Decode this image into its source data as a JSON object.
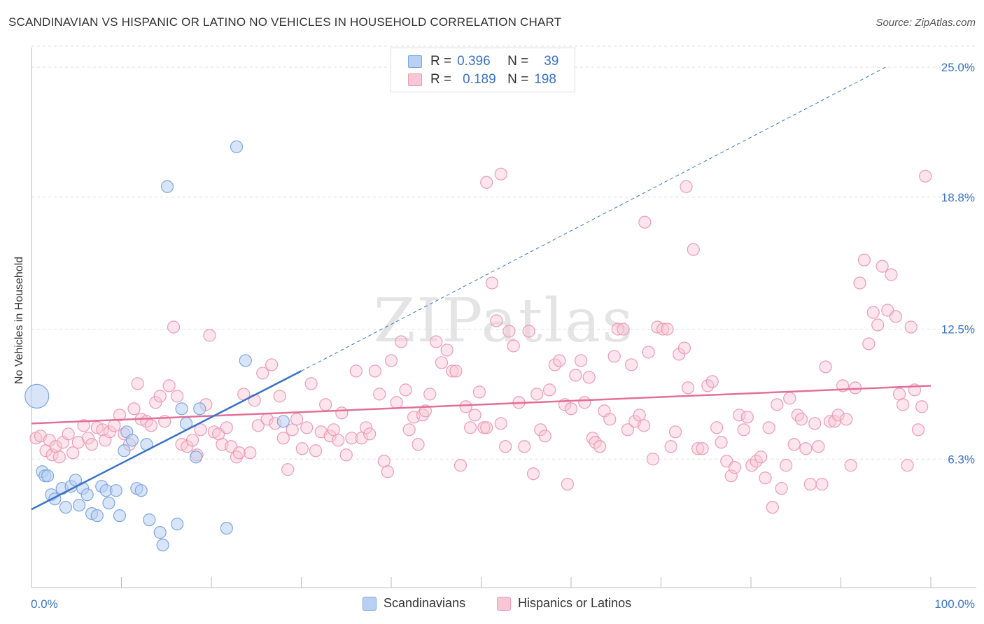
{
  "title": "SCANDINAVIAN VS HISPANIC OR LATINO NO VEHICLES IN HOUSEHOLD CORRELATION CHART",
  "source": "Source: ZipAtlas.com",
  "watermark": "ZIPatlas",
  "legend_top": {
    "rows": [
      {
        "r_label": "R =",
        "r_value": "0.396",
        "n_label": "N =",
        "n_value": "39"
      },
      {
        "r_label": "R =",
        "r_value": "0.189",
        "n_label": "N =",
        "n_value": "198"
      }
    ]
  },
  "legend_bottom": [
    "Scandinavians",
    "Hispanics or Latinos"
  ],
  "colors": {
    "blue_fill": "#b8d0f3",
    "blue_stroke": "#7ea6e0",
    "blue_line": "#3a73c8",
    "pink_fill": "#f9c6d5",
    "pink_stroke": "#ec9bb5",
    "pink_line": "#e27099",
    "tick_label": "#3a73c8",
    "grid": "#dddddd"
  },
  "chart_data": {
    "type": "scatter",
    "title": "SCANDINAVIAN VS HISPANIC OR LATINO NO VEHICLES IN HOUSEHOLD CORRELATION CHART",
    "xlabel": "",
    "ylabel": "No Vehicles in Household",
    "xlim": [
      0,
      100
    ],
    "ylim": [
      0,
      26.5
    ],
    "x_tick_labels": [
      "0.0%",
      "100.0%"
    ],
    "y_ticks": [
      6.3,
      12.5,
      18.8,
      25.0
    ],
    "y_tick_labels": [
      "6.3%",
      "12.5%",
      "18.8%",
      "25.0%"
    ],
    "grid": "horizontal dashed",
    "legend": "top-center",
    "series": [
      {
        "name": "Scandinavians",
        "R": 0.396,
        "N": 39,
        "trend": {
          "x": [
            0,
            30
          ],
          "y": [
            3.9,
            10.5
          ],
          "extended": {
            "x": [
              30,
              95
            ],
            "y": [
              10.5,
              25.0
            ]
          }
        },
        "points": [
          [
            0.6,
            9.3
          ],
          [
            1.2,
            5.7
          ],
          [
            1.5,
            5.5
          ],
          [
            1.8,
            5.5
          ],
          [
            2.2,
            4.6
          ],
          [
            2.6,
            4.4
          ],
          [
            3.4,
            4.9
          ],
          [
            3.8,
            4.0
          ],
          [
            4.4,
            5.0
          ],
          [
            4.9,
            5.3
          ],
          [
            5.3,
            4.1
          ],
          [
            5.7,
            4.9
          ],
          [
            6.2,
            4.6
          ],
          [
            6.7,
            3.7
          ],
          [
            7.3,
            3.6
          ],
          [
            7.8,
            5.0
          ],
          [
            8.3,
            4.8
          ],
          [
            8.6,
            4.2
          ],
          [
            9.4,
            4.8
          ],
          [
            9.8,
            3.6
          ],
          [
            10.3,
            6.7
          ],
          [
            10.6,
            7.6
          ],
          [
            11.2,
            7.2
          ],
          [
            11.7,
            4.9
          ],
          [
            12.2,
            4.8
          ],
          [
            12.8,
            7.0
          ],
          [
            13.1,
            3.4
          ],
          [
            14.3,
            2.8
          ],
          [
            14.6,
            2.2
          ],
          [
            15.1,
            19.3
          ],
          [
            16.2,
            3.2
          ],
          [
            16.7,
            8.7
          ],
          [
            17.2,
            8.0
          ],
          [
            18.3,
            6.4
          ],
          [
            18.7,
            8.7
          ],
          [
            21.7,
            3.0
          ],
          [
            22.8,
            21.2
          ],
          [
            23.8,
            11.0
          ],
          [
            28.0,
            8.1
          ]
        ]
      },
      {
        "name": "Hispanics or Latinos",
        "R": 0.189,
        "N": 198,
        "trend": {
          "x": [
            0,
            100
          ],
          "y": [
            8.0,
            9.8
          ]
        },
        "points": [
          [
            0.5,
            7.3
          ],
          [
            1.0,
            7.4
          ],
          [
            1.6,
            6.7
          ],
          [
            2.0,
            7.2
          ],
          [
            2.3,
            6.5
          ],
          [
            2.7,
            6.9
          ],
          [
            3.1,
            6.4
          ],
          [
            3.5,
            7.1
          ],
          [
            4.1,
            7.5
          ],
          [
            4.6,
            6.6
          ],
          [
            5.2,
            7.1
          ],
          [
            5.8,
            7.9
          ],
          [
            6.3,
            7.3
          ],
          [
            6.7,
            7.0
          ],
          [
            7.3,
            7.8
          ],
          [
            7.9,
            7.7
          ],
          [
            8.2,
            7.2
          ],
          [
            8.7,
            7.6
          ],
          [
            9.2,
            7.9
          ],
          [
            9.8,
            8.4
          ],
          [
            10.3,
            7.5
          ],
          [
            10.9,
            7.0
          ],
          [
            11.4,
            8.7
          ],
          [
            11.8,
            9.9
          ],
          [
            12.2,
            8.2
          ],
          [
            12.8,
            8.1
          ],
          [
            13.3,
            7.9
          ],
          [
            13.8,
            9.0
          ],
          [
            14.3,
            9.3
          ],
          [
            14.8,
            8.1
          ],
          [
            15.3,
            9.8
          ],
          [
            15.8,
            12.6
          ],
          [
            16.2,
            9.3
          ],
          [
            16.7,
            7.0
          ],
          [
            17.3,
            6.9
          ],
          [
            17.9,
            7.2
          ],
          [
            18.4,
            6.5
          ],
          [
            18.8,
            7.7
          ],
          [
            19.4,
            8.9
          ],
          [
            19.8,
            12.2
          ],
          [
            20.3,
            7.6
          ],
          [
            20.8,
            7.5
          ],
          [
            21.2,
            7.0
          ],
          [
            21.7,
            7.8
          ],
          [
            22.2,
            6.9
          ],
          [
            22.8,
            6.4
          ],
          [
            23.1,
            6.6
          ],
          [
            23.6,
            9.4
          ],
          [
            24.3,
            6.6
          ],
          [
            24.8,
            9.1
          ],
          [
            25.2,
            7.9
          ],
          [
            25.7,
            10.4
          ],
          [
            26.2,
            8.2
          ],
          [
            26.7,
            10.8
          ],
          [
            27.1,
            8.0
          ],
          [
            27.6,
            9.3
          ],
          [
            28.0,
            7.3
          ],
          [
            28.5,
            5.8
          ],
          [
            29.0,
            7.7
          ],
          [
            29.5,
            8.2
          ],
          [
            30.1,
            6.8
          ],
          [
            30.6,
            7.8
          ],
          [
            31.1,
            9.9
          ],
          [
            31.6,
            6.7
          ],
          [
            32.2,
            7.6
          ],
          [
            32.7,
            8.9
          ],
          [
            33.2,
            7.4
          ],
          [
            33.6,
            7.7
          ],
          [
            34.1,
            7.2
          ],
          [
            34.5,
            8.5
          ],
          [
            35.0,
            6.5
          ],
          [
            35.6,
            7.3
          ],
          [
            36.1,
            10.5
          ],
          [
            36.7,
            7.3
          ],
          [
            37.2,
            7.8
          ],
          [
            37.6,
            7.5
          ],
          [
            38.2,
            10.5
          ],
          [
            38.7,
            9.4
          ],
          [
            39.2,
            6.2
          ],
          [
            39.6,
            5.7
          ],
          [
            40.0,
            11.0
          ],
          [
            40.6,
            9.0
          ],
          [
            41.1,
            11.9
          ],
          [
            41.6,
            9.6
          ],
          [
            42.0,
            7.7
          ],
          [
            42.5,
            8.3
          ],
          [
            43.0,
            7.0
          ],
          [
            43.5,
            8.4
          ],
          [
            43.8,
            8.6
          ],
          [
            44.3,
            9.4
          ],
          [
            45.0,
            11.9
          ],
          [
            45.6,
            10.9
          ],
          [
            46.2,
            11.5
          ],
          [
            46.8,
            10.5
          ],
          [
            47.2,
            10.5
          ],
          [
            47.7,
            6.0
          ],
          [
            48.3,
            8.8
          ],
          [
            48.8,
            7.8
          ],
          [
            49.3,
            8.4
          ],
          [
            49.8,
            9.5
          ],
          [
            50.3,
            7.8
          ],
          [
            50.6,
            7.8
          ],
          [
            51.2,
            14.7
          ],
          [
            51.7,
            12.9
          ],
          [
            52.2,
            8.0
          ],
          [
            52.7,
            6.9
          ],
          [
            53.1,
            12.4
          ],
          [
            53.6,
            11.7
          ],
          [
            54.2,
            9.0
          ],
          [
            54.8,
            6.9
          ],
          [
            55.3,
            12.4
          ],
          [
            55.8,
            5.6
          ],
          [
            56.2,
            9.4
          ],
          [
            56.6,
            7.7
          ],
          [
            57.1,
            7.4
          ],
          [
            57.6,
            9.6
          ],
          [
            58.2,
            10.8
          ],
          [
            58.7,
            11.0
          ],
          [
            59.3,
            8.9
          ],
          [
            59.6,
            5.1
          ],
          [
            60.0,
            8.7
          ],
          [
            60.5,
            10.3
          ],
          [
            61.1,
            11.0
          ],
          [
            61.5,
            9.0
          ],
          [
            62.0,
            10.2
          ],
          [
            62.4,
            7.3
          ],
          [
            62.7,
            7.1
          ],
          [
            63.2,
            6.9
          ],
          [
            63.7,
            8.6
          ],
          [
            64.3,
            8.2
          ],
          [
            64.8,
            11.2
          ],
          [
            65.2,
            12.5
          ],
          [
            65.8,
            12.5
          ],
          [
            66.3,
            7.7
          ],
          [
            66.7,
            10.8
          ],
          [
            67.1,
            8.1
          ],
          [
            67.6,
            8.4
          ],
          [
            68.1,
            7.9
          ],
          [
            68.6,
            11.4
          ],
          [
            69.1,
            6.3
          ],
          [
            69.6,
            12.6
          ],
          [
            70.2,
            12.5
          ],
          [
            70.7,
            12.5
          ],
          [
            71.1,
            6.9
          ],
          [
            71.6,
            7.6
          ],
          [
            72.0,
            11.3
          ],
          [
            72.6,
            11.6
          ],
          [
            73.0,
            9.7
          ],
          [
            73.6,
            16.3
          ],
          [
            74.1,
            6.8
          ],
          [
            74.6,
            6.8
          ],
          [
            75.2,
            9.8
          ],
          [
            75.7,
            10.0
          ],
          [
            76.2,
            7.8
          ],
          [
            76.7,
            7.1
          ],
          [
            77.3,
            6.2
          ],
          [
            77.8,
            5.5
          ],
          [
            78.2,
            5.9
          ],
          [
            78.7,
            8.4
          ],
          [
            79.2,
            7.7
          ],
          [
            79.6,
            8.3
          ],
          [
            80.1,
            6.0
          ],
          [
            80.6,
            6.2
          ],
          [
            81.1,
            6.4
          ],
          [
            81.6,
            5.4
          ],
          [
            82.0,
            7.8
          ],
          [
            82.4,
            4.0
          ],
          [
            82.9,
            8.9
          ],
          [
            83.4,
            4.9
          ],
          [
            83.9,
            6.0
          ],
          [
            84.3,
            9.2
          ],
          [
            84.8,
            7.0
          ],
          [
            85.2,
            8.4
          ],
          [
            85.6,
            8.2
          ],
          [
            86.1,
            6.8
          ],
          [
            86.6,
            5.1
          ],
          [
            87.1,
            8.0
          ],
          [
            87.5,
            6.9
          ],
          [
            87.9,
            5.1
          ],
          [
            88.3,
            10.7
          ],
          [
            88.8,
            8.1
          ],
          [
            89.3,
            8.1
          ],
          [
            89.7,
            8.4
          ],
          [
            90.2,
            9.8
          ],
          [
            90.6,
            8.2
          ],
          [
            91.1,
            6.0
          ],
          [
            91.6,
            9.7
          ],
          [
            92.1,
            14.7
          ],
          [
            92.6,
            15.8
          ],
          [
            93.1,
            11.8
          ],
          [
            93.6,
            13.3
          ],
          [
            94.1,
            12.7
          ],
          [
            94.6,
            15.5
          ],
          [
            95.2,
            13.4
          ],
          [
            95.6,
            15.1
          ],
          [
            96.1,
            13.1
          ],
          [
            96.5,
            9.4
          ],
          [
            96.9,
            8.9
          ],
          [
            97.4,
            6.0
          ],
          [
            97.8,
            12.6
          ],
          [
            98.2,
            9.6
          ],
          [
            98.6,
            7.7
          ],
          [
            99.0,
            8.8
          ],
          [
            99.4,
            19.8
          ],
          [
            72.8,
            19.3
          ],
          [
            52.2,
            19.9
          ],
          [
            50.6,
            19.5
          ],
          [
            68.2,
            17.6
          ]
        ]
      }
    ]
  }
}
